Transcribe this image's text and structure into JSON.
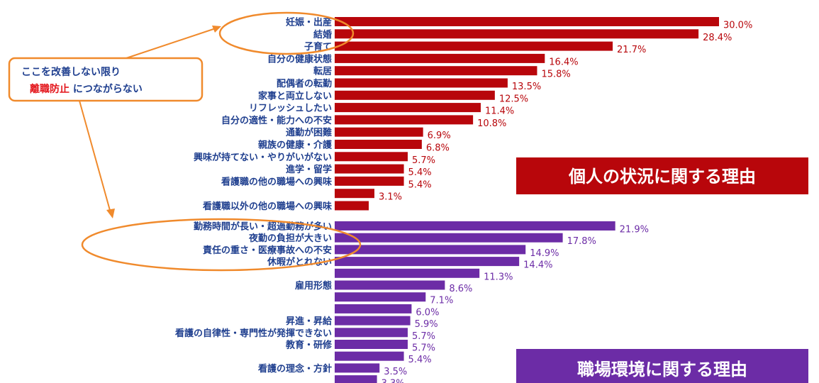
{
  "colors": {
    "personal": "#b8060b",
    "personal_label": "#b8060b",
    "workplace": "#6c2ca6",
    "workplace_label": "#6c2ca6",
    "category_text": "#1f3f8f",
    "callout": "#f08a2c",
    "note_dark": "#1f3f8f",
    "note_red": "#e3141a"
  },
  "callout": {
    "line1": "ここを改善しない限り",
    "line2_red": "離職防止",
    "line2_rest": " につながらない"
  },
  "legend": {
    "personal": "個人の状況に関する理由",
    "workplace": "職場環境に関する理由"
  },
  "chart_data": {
    "type": "bar",
    "orientation": "horizontal",
    "value_suffix": "%",
    "xlim": [
      0,
      30
    ],
    "groups": [
      {
        "name": "個人の状況に関する理由",
        "color": "#b8060b",
        "categories": [
          "妊娠・出産",
          "結婚",
          "子育て",
          "自分の健康状態",
          "転居",
          "配偶者の転勤",
          "家事と両立しない",
          "リフレッシュしたい",
          "自分の適性・能力への不安",
          "通勤が困難",
          "親族の健康・介護",
          "興味が持てない・やりがいがない",
          "進学・留学",
          "看護職の他の職場への興味",
          "",
          "看護職以外の他の職場への興味"
        ],
        "values": [
          30.0,
          28.4,
          21.7,
          16.4,
          15.8,
          13.5,
          12.5,
          11.4,
          10.8,
          6.9,
          6.8,
          5.7,
          5.4,
          5.4,
          3.1,
          null
        ],
        "labels": [
          "30.0%",
          "28.4%",
          "21.7%",
          "16.4%",
          "15.8%",
          "13.5%",
          "12.5%",
          "11.4%",
          "10.8%",
          "6.9%",
          "6.8%",
          "5.7%",
          "5.4%",
          "5.4%",
          "3.1%",
          ""
        ]
      },
      {
        "name": "職場環境に関する理由",
        "color": "#6c2ca6",
        "categories": [
          "勤務時間が長い・超過勤務が多い",
          "夜勤の負担が大きい",
          "責任の重さ・医療事故への不安",
          "休暇がとれない",
          "",
          "雇用形態",
          "",
          "",
          "昇進・昇給",
          "看護の自律性・専門性が発揮できない",
          "教育・研修",
          "",
          "看護の理念・方針",
          "",
          ""
        ],
        "values": [
          21.9,
          17.8,
          14.9,
          14.4,
          11.3,
          8.6,
          7.1,
          6.0,
          5.9,
          5.7,
          5.7,
          5.4,
          3.5,
          3.3,
          null
        ],
        "labels": [
          "21.9%",
          "17.8%",
          "14.9%",
          "14.4%",
          "11.3%",
          "8.6%",
          "7.1%",
          "6.0%",
          "5.9%",
          "5.7%",
          "5.7%",
          "5.4%",
          "3.5%",
          "3.3%",
          ""
        ]
      }
    ]
  }
}
